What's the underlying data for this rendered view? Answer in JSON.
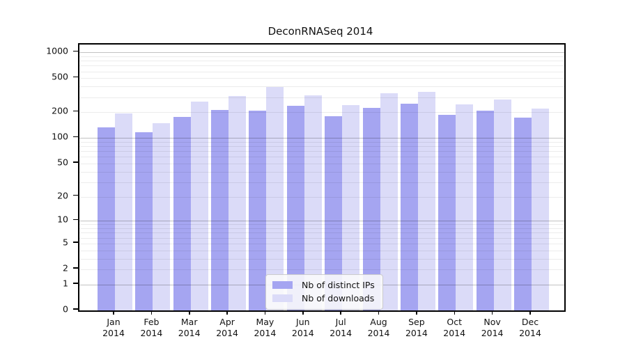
{
  "figure": {
    "background": "#ffffff"
  },
  "chart_data": {
    "type": "bar",
    "title": "DeconRNASeq 2014",
    "xlabel": "",
    "ylabel": "",
    "yscale": "log1p",
    "ylim": [
      0,
      1230
    ],
    "grid": "horizontal",
    "legend_position": "bottom-center-inside",
    "categories": [
      "Jan 2014",
      "Feb 2014",
      "Mar 2014",
      "Apr 2014",
      "May 2014",
      "Jun 2014",
      "Jul 2014",
      "Aug 2014",
      "Sep 2014",
      "Oct 2014",
      "Nov 2014",
      "Dec 2014"
    ],
    "series": [
      {
        "name": "Nb of distinct IPs",
        "color": "#a5a5f1",
        "values": [
          133,
          118,
          178,
          212,
          209,
          241,
          181,
          226,
          252,
          188,
          211,
          175
        ]
      },
      {
        "name": "Nb of downloads",
        "color": "#dbdbf8",
        "values": [
          195,
          149,
          267,
          308,
          392,
          319,
          245,
          334,
          350,
          248,
          281,
          221
        ]
      }
    ],
    "y_ticks": [
      1000,
      500,
      200,
      100,
      50,
      20,
      10,
      5,
      2,
      1,
      0
    ],
    "gridlines": {
      "major": [
        1,
        10,
        100,
        1000
      ],
      "minor": [
        2,
        3,
        4,
        5,
        6,
        7,
        8,
        9,
        20,
        30,
        40,
        50,
        60,
        70,
        80,
        90,
        200,
        300,
        400,
        500,
        600,
        700,
        800,
        900
      ],
      "major_color": "rgba(0,0,0,0.24)",
      "minor_color": "rgba(0,0,0,0.075)"
    }
  },
  "legend": {
    "items": [
      {
        "label": "Nb of distinct IPs",
        "color": "#a5a5f1"
      },
      {
        "label": "Nb of downloads",
        "color": "#dbdbf8"
      }
    ]
  }
}
